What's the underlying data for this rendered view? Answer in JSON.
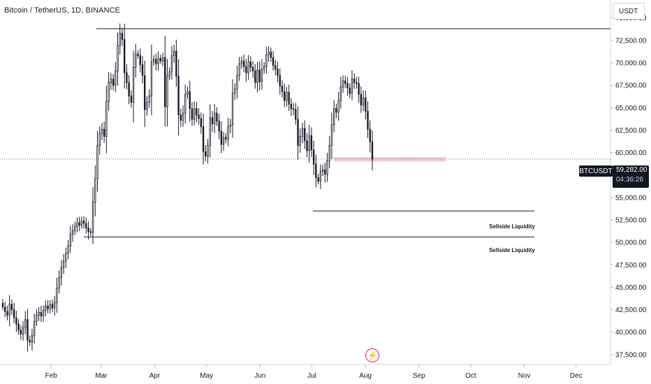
{
  "header": {
    "title": "Bitcoin / TetherUS, 1D, BINANCE",
    "currency": "USDT"
  },
  "last_price": {
    "symbol": "BTCUSDT",
    "price": "59,282.00",
    "countdown": "04:36:26"
  },
  "colors": {
    "candle_body": "#131722",
    "grid_dotted": "#787b86",
    "zone": "#f7c1c8",
    "lightning": "#e91e63"
  },
  "icons": {
    "lightning": "lightning-icon"
  },
  "chart_data": {
    "type": "candlestick",
    "title": "Bitcoin / TetherUS, 1D, BINANCE",
    "x_labels": [
      "Feb",
      "Mar",
      "Apr",
      "May",
      "Jun",
      "Jul",
      "Aug",
      "Sep",
      "Oct",
      "Nov",
      "Dec"
    ],
    "y_ticks": [
      "75,000.00",
      "72,500.00",
      "70,000.00",
      "67,500.00",
      "65,000.00",
      "62,500.00",
      "60,000.00",
      "57,500.00",
      "55,000.00",
      "52,500.00",
      "50,000.00",
      "47,500.00",
      "45,000.00",
      "42,500.00",
      "40,000.00",
      "37,500.00"
    ],
    "ylim": [
      36400,
      77000
    ],
    "close_series": [
      42800,
      42300,
      41900,
      43100,
      42500,
      41600,
      40900,
      40200,
      39800,
      40500,
      41400,
      39100,
      38900,
      39600,
      41200,
      41900,
      42200,
      41800,
      42400,
      42900,
      42600,
      43100,
      42700,
      43300,
      44900,
      46100,
      47200,
      47900,
      48800,
      49600,
      50900,
      51300,
      51800,
      52200,
      51900,
      52400,
      52100,
      51600,
      51200,
      51100,
      54500,
      57100,
      60800,
      62100,
      62600,
      61800,
      65700,
      67800,
      68200,
      67500,
      69100,
      71900,
      73300,
      72600,
      68900,
      67800,
      66300,
      65600,
      69500,
      71000,
      70800,
      69800,
      68600,
      64800,
      65600,
      66300,
      70100,
      70400,
      69900,
      70500,
      70200,
      70600,
      65100,
      68600,
      69000,
      70800,
      71300,
      68500,
      64200,
      63600,
      64400,
      66500,
      66800,
      64900,
      63700,
      64900,
      64200,
      63800,
      62900,
      60100,
      59600,
      60800,
      63900,
      63200,
      64400,
      63500,
      62400,
      60900,
      61700,
      61500,
      62900,
      63100,
      66600,
      67100,
      68600,
      69900,
      70200,
      69600,
      68900,
      70100,
      69500,
      69100,
      67800,
      69200,
      67900,
      69300,
      69600,
      70900,
      71200,
      70600,
      69700,
      69300,
      68600,
      67400,
      66800,
      65800,
      66700,
      65400,
      64900,
      64800,
      63700,
      60800,
      61800,
      62700,
      61300,
      60200,
      61900,
      60300,
      58700,
      57200,
      56800,
      57900,
      58100,
      57600,
      59100,
      60800,
      63100,
      64900,
      64500,
      65800,
      67300,
      68000,
      67700,
      67200,
      66600,
      68200,
      67800,
      67700,
      66500,
      65300,
      66100,
      64600,
      62600,
      61200,
      59282
    ],
    "x_range": [
      "2024-01-04",
      "2024-08-05"
    ],
    "annotations": [
      {
        "type": "horizontal_line",
        "value": 73800
      },
      {
        "type": "horizontal_line",
        "value": 53500,
        "label": "Sellside Liquidity"
      },
      {
        "type": "horizontal_line",
        "value": 50600,
        "label": "Sellside Liquidity"
      },
      {
        "type": "zone",
        "range": [
          59000,
          59500
        ]
      },
      {
        "type": "price_line",
        "value": 59282
      }
    ]
  }
}
